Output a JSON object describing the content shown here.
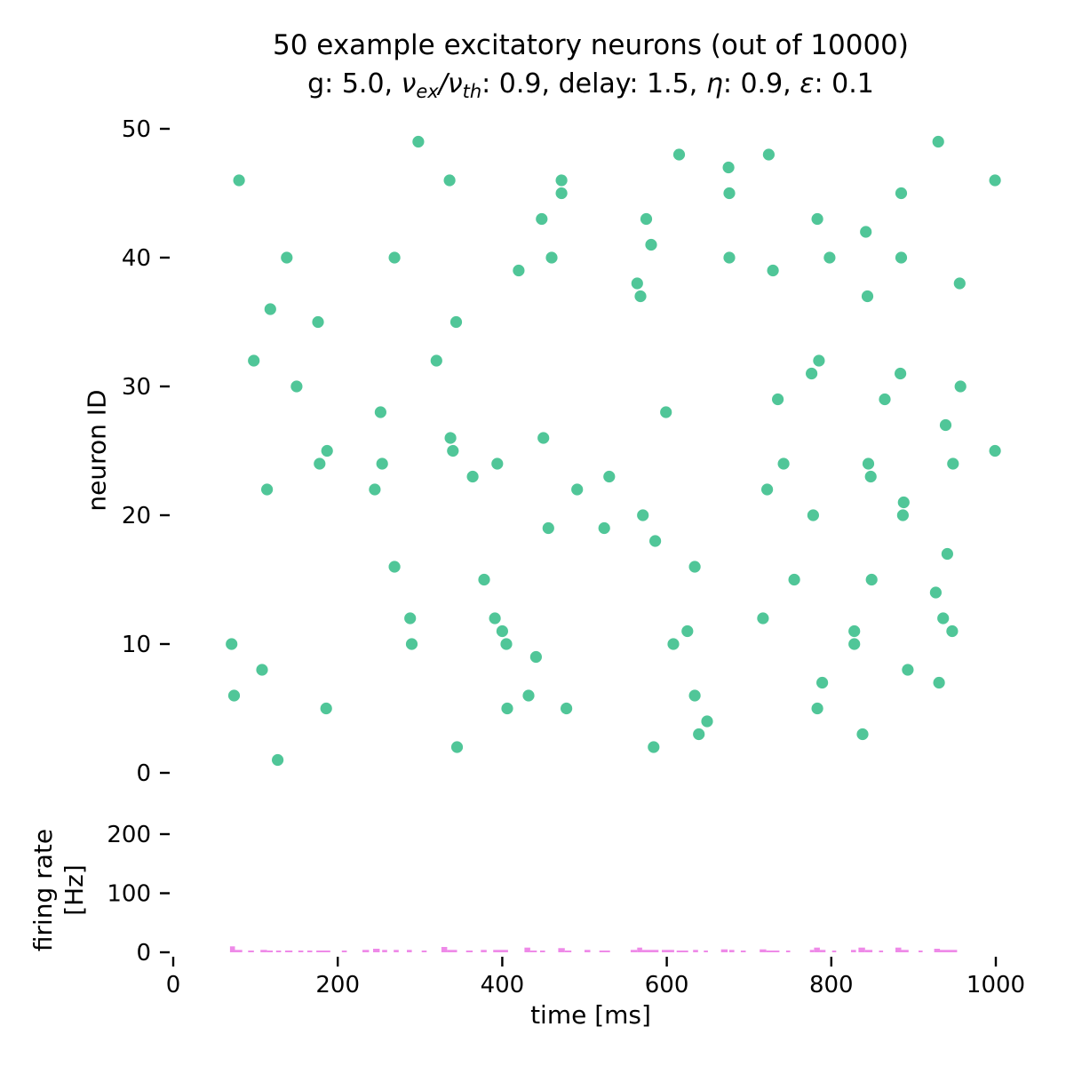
{
  "colors": {
    "spike_dot": "#50c698",
    "rate_bar": "#ee8ae8",
    "text": "#000000",
    "tick": "#000000",
    "background": "#ffffff"
  },
  "chart_data": [
    {
      "type": "scatter",
      "title": "50 example excitatory neurons (out of 10000)",
      "subtitle_plain": "g: 5.0, ν_ex/ν_th: 0.9, delay: 1.5, η: 0.9, ε: 0.1",
      "subtitle_segments": [
        {
          "text": "g: 5.0, ",
          "style": "plain"
        },
        {
          "text": "ν",
          "style": "italic"
        },
        {
          "text": "ex",
          "style": "sub"
        },
        {
          "text": "/",
          "style": "italic"
        },
        {
          "text": "ν",
          "style": "italic"
        },
        {
          "text": "th",
          "style": "sub"
        },
        {
          "text": ": 0.9, delay: 1.5, ",
          "style": "plain"
        },
        {
          "text": "η",
          "style": "italic"
        },
        {
          "text": ": 0.9, ",
          "style": "plain"
        },
        {
          "text": "ε",
          "style": "italic"
        },
        {
          "text": ": 0.1",
          "style": "plain"
        }
      ],
      "ylabel": "neuron ID",
      "xlim": [
        0,
        1000
      ],
      "ylim": [
        0,
        50
      ],
      "yticks": [
        0,
        10,
        20,
        30,
        40,
        50
      ],
      "grid": false,
      "legend": "none",
      "marker": "filled-circle",
      "points_format": [
        "time_ms",
        "neuron_id"
      ],
      "points": [
        [
          298,
          49
        ],
        [
          930,
          49
        ],
        [
          615,
          48
        ],
        [
          724,
          48
        ],
        [
          675,
          47
        ],
        [
          80,
          46
        ],
        [
          336,
          46
        ],
        [
          472,
          46
        ],
        [
          999,
          46
        ],
        [
          472,
          45
        ],
        [
          676,
          45
        ],
        [
          885,
          45
        ],
        [
          448,
          43
        ],
        [
          575,
          43
        ],
        [
          783,
          43
        ],
        [
          842,
          42
        ],
        [
          581,
          41
        ],
        [
          138,
          40
        ],
        [
          269,
          40
        ],
        [
          460,
          40
        ],
        [
          676,
          40
        ],
        [
          798,
          40
        ],
        [
          885,
          40
        ],
        [
          420,
          39
        ],
        [
          729,
          39
        ],
        [
          564,
          38
        ],
        [
          956,
          38
        ],
        [
          568,
          37
        ],
        [
          844,
          37
        ],
        [
          118,
          36
        ],
        [
          176,
          35
        ],
        [
          344,
          35
        ],
        [
          98,
          32
        ],
        [
          320,
          32
        ],
        [
          785,
          32
        ],
        [
          776,
          31
        ],
        [
          884,
          31
        ],
        [
          150,
          30
        ],
        [
          957,
          30
        ],
        [
          735,
          29
        ],
        [
          865,
          29
        ],
        [
          252,
          28
        ],
        [
          599,
          28
        ],
        [
          939,
          27
        ],
        [
          337,
          26
        ],
        [
          450,
          26
        ],
        [
          187,
          25
        ],
        [
          340,
          25
        ],
        [
          999,
          25
        ],
        [
          178,
          24
        ],
        [
          254,
          24
        ],
        [
          394,
          24
        ],
        [
          742,
          24
        ],
        [
          845,
          24
        ],
        [
          948,
          24
        ],
        [
          364,
          23
        ],
        [
          530,
          23
        ],
        [
          848,
          23
        ],
        [
          114,
          22
        ],
        [
          245,
          22
        ],
        [
          491,
          22
        ],
        [
          722,
          22
        ],
        [
          888,
          21
        ],
        [
          571,
          20
        ],
        [
          778,
          20
        ],
        [
          887,
          20
        ],
        [
          456,
          19
        ],
        [
          524,
          19
        ],
        [
          586,
          18
        ],
        [
          941,
          17
        ],
        [
          269,
          16
        ],
        [
          634,
          16
        ],
        [
          378,
          15
        ],
        [
          755,
          15
        ],
        [
          849,
          15
        ],
        [
          927,
          14
        ],
        [
          288,
          12
        ],
        [
          391,
          12
        ],
        [
          717,
          12
        ],
        [
          936,
          12
        ],
        [
          400,
          11
        ],
        [
          625,
          11
        ],
        [
          828,
          11
        ],
        [
          947,
          11
        ],
        [
          71,
          10
        ],
        [
          290,
          10
        ],
        [
          405,
          10
        ],
        [
          608,
          10
        ],
        [
          828,
          10
        ],
        [
          441,
          9
        ],
        [
          108,
          8
        ],
        [
          893,
          8
        ],
        [
          789,
          7
        ],
        [
          931,
          7
        ],
        [
          74,
          6
        ],
        [
          432,
          6
        ],
        [
          634,
          6
        ],
        [
          186,
          5
        ],
        [
          406,
          5
        ],
        [
          478,
          5
        ],
        [
          783,
          5
        ],
        [
          649,
          4
        ],
        [
          639,
          3
        ],
        [
          838,
          3
        ],
        [
          345,
          2
        ],
        [
          584,
          2
        ],
        [
          127,
          1
        ]
      ]
    },
    {
      "type": "bar",
      "ylabel_line1": "firing rate",
      "ylabel_line2": "[Hz]",
      "xlabel": "time [ms]",
      "xlim": [
        0,
        1000
      ],
      "ylim": [
        0,
        220
      ],
      "yticks": [
        0,
        100,
        200
      ],
      "xticks": [
        0,
        200,
        400,
        600,
        800,
        1000
      ],
      "grid": false,
      "bars_format": [
        "t_start_ms",
        "width_ms",
        "rate_hz"
      ],
      "bars": [
        [
          69,
          6,
          10
        ],
        [
          75,
          9,
          4
        ],
        [
          91,
          7,
          3
        ],
        [
          106,
          8,
          4
        ],
        [
          114,
          7,
          3
        ],
        [
          125,
          6,
          3
        ],
        [
          136,
          9,
          3
        ],
        [
          152,
          6,
          3
        ],
        [
          163,
          6,
          3
        ],
        [
          174,
          17,
          3
        ],
        [
          205,
          6,
          3
        ],
        [
          230,
          8,
          4
        ],
        [
          243,
          8,
          6
        ],
        [
          254,
          6,
          4
        ],
        [
          268,
          6,
          4
        ],
        [
          284,
          6,
          4
        ],
        [
          302,
          6,
          3
        ],
        [
          326,
          7,
          9
        ],
        [
          333,
          12,
          4
        ],
        [
          356,
          8,
          3
        ],
        [
          374,
          7,
          4
        ],
        [
          389,
          18,
          4
        ],
        [
          427,
          7,
          8
        ],
        [
          434,
          8,
          3
        ],
        [
          446,
          6,
          3
        ],
        [
          468,
          8,
          7
        ],
        [
          476,
          8,
          3
        ],
        [
          500,
          7,
          4
        ],
        [
          518,
          13,
          3
        ],
        [
          556,
          8,
          4
        ],
        [
          564,
          6,
          8
        ],
        [
          570,
          20,
          4
        ],
        [
          594,
          15,
          4
        ],
        [
          612,
          14,
          3
        ],
        [
          632,
          6,
          4
        ],
        [
          645,
          5,
          3
        ],
        [
          666,
          8,
          5
        ],
        [
          676,
          6,
          4
        ],
        [
          690,
          6,
          3
        ],
        [
          713,
          8,
          5
        ],
        [
          721,
          16,
          3
        ],
        [
          745,
          5,
          3
        ],
        [
          774,
          5,
          4
        ],
        [
          779,
          7,
          8
        ],
        [
          786,
          7,
          4
        ],
        [
          801,
          5,
          3
        ],
        [
          824,
          6,
          4
        ],
        [
          833,
          8,
          8
        ],
        [
          841,
          9,
          4
        ],
        [
          858,
          5,
          3
        ],
        [
          878,
          7,
          8
        ],
        [
          885,
          9,
          4
        ],
        [
          906,
          5,
          3
        ],
        [
          925,
          7,
          6
        ],
        [
          932,
          21,
          4
        ]
      ]
    }
  ]
}
